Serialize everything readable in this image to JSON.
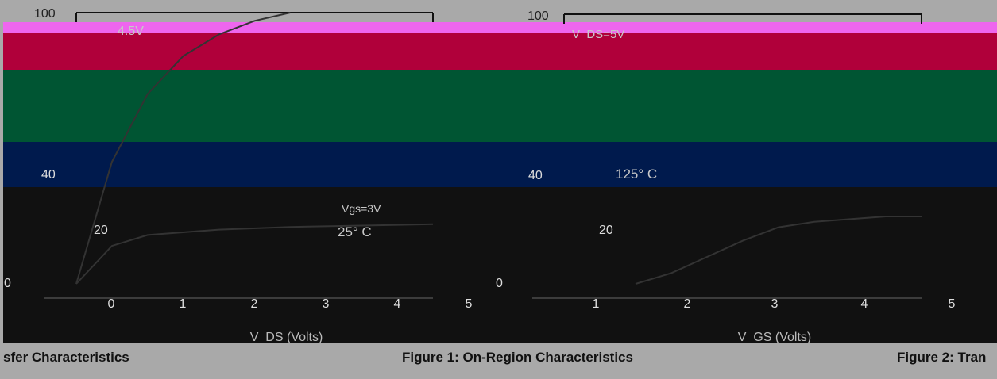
{
  "colors": {
    "background": "#a9a9a9",
    "band_magenta": "#ee66ee",
    "band_crimson": "#b0003a",
    "band_green": "#005533",
    "band_navy": "#001a4d",
    "band_black": "#111111",
    "axis": "#111111",
    "tick_text_dark": "#222222",
    "tick_text_light": "#dddddd"
  },
  "captions": {
    "left_partial": "sfer Characteristics",
    "middle": "Figure 1: On-Region Characteristics",
    "right_partial": "Figure 2: Tran"
  },
  "chart_data": [
    {
      "type": "line",
      "name": "figure-1",
      "xlabel": "V_DS (Volts)",
      "xlim": [
        0,
        5
      ],
      "x_ticks": [
        "0",
        "1",
        "2",
        "3",
        "4",
        "5"
      ],
      "ylim": [
        0,
        100
      ],
      "y_ticks": [
        "0",
        "20",
        "40",
        "100"
      ],
      "annotations": [
        "4.5V",
        "Vgs=3V",
        "25° C"
      ],
      "series": [
        {
          "name": "4.5V",
          "x": [
            0,
            0.5,
            1,
            1.5,
            2,
            2.5,
            3
          ],
          "y": [
            0,
            45,
            70,
            84,
            92,
            97,
            100
          ]
        },
        {
          "name": "Vgs=3V",
          "x": [
            0,
            0.5,
            1,
            2,
            3,
            4,
            5
          ],
          "y": [
            0,
            14,
            18,
            20,
            21,
            21.5,
            22
          ]
        }
      ]
    },
    {
      "type": "line",
      "name": "figure-2",
      "xlabel": "V_GS (Volts)",
      "xlim": [
        0,
        5
      ],
      "x_ticks": [
        "1",
        "2",
        "3",
        "4",
        "5"
      ],
      "ylim": [
        0,
        100
      ],
      "y_ticks": [
        "0",
        "20",
        "40",
        "100"
      ],
      "annotations": [
        "125° C",
        "V_DS=5V"
      ],
      "series": [
        {
          "name": "125° C",
          "x": [
            1,
            1.5,
            2,
            2.5,
            3,
            3.5,
            4,
            4.5,
            5
          ],
          "y": [
            0,
            4,
            10,
            16,
            21,
            23,
            24,
            25,
            25
          ]
        }
      ]
    }
  ]
}
